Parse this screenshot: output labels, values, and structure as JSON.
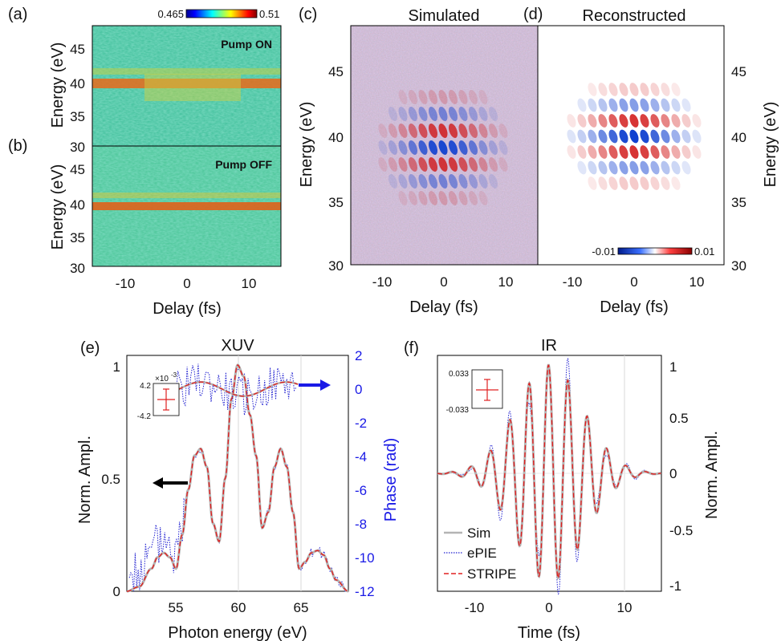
{
  "panels": {
    "a": {
      "tag": "(a)",
      "label": "Pump ON",
      "ylabel": "Energy (eV)",
      "yticks": [
        "45",
        "40",
        "35",
        "30"
      ],
      "cb_min": "0.465",
      "cb_max": "0.51"
    },
    "b": {
      "tag": "(b)",
      "label": "Pump OFF",
      "ylabel": "Energy (eV)",
      "yticks": [
        "45",
        "40",
        "35",
        "30"
      ],
      "xlabel": "Delay (fs)",
      "xticks": [
        "-10",
        "0",
        "10"
      ]
    },
    "c": {
      "tag": "(c)",
      "title": "Simulated",
      "ylabel": "Energy (eV)",
      "yticks": [
        "45",
        "40",
        "35",
        "30"
      ],
      "xlabel": "Delay (fs)",
      "xticks": [
        "-10",
        "0",
        "10"
      ]
    },
    "d": {
      "tag": "(d)",
      "title": "Reconstructed",
      "ylabel": "Energy (eV)",
      "yticks": [
        "45",
        "40",
        "35",
        "30"
      ],
      "xlabel": "Delay (fs)",
      "xticks": [
        "-10",
        "0",
        "10"
      ],
      "cb_min": "-0.01",
      "cb_max": "0.01"
    },
    "e": {
      "tag": "(e)",
      "title": "XUV",
      "ylabel_left": "Norm. Ampl.",
      "ylabel_right": "Phase (rad)",
      "yticks_left": [
        "1",
        "0.5",
        "0"
      ],
      "yticks_right": [
        "2",
        "0",
        "-2",
        "-4",
        "-6",
        "-8",
        "-10",
        "-12"
      ],
      "xlabel": "Photon energy (eV)",
      "xticks": [
        "55",
        "60",
        "65"
      ],
      "inset_top": "4.2",
      "inset_bottom": "-4.2",
      "inset_exp": "×10",
      "inset_exp_pow": "-3"
    },
    "f": {
      "tag": "(f)",
      "title": "IR",
      "ylabel": "Norm. Ampl.",
      "yticks": [
        "1",
        "0.5",
        "0",
        "-0.5",
        "-1"
      ],
      "xlabel": "Time (fs)",
      "xticks": [
        "-10",
        "0",
        "10"
      ],
      "inset_top": "0.033",
      "inset_bottom": "-0.033",
      "legend": [
        "Sim",
        "ePIE",
        "STRIPE"
      ]
    }
  },
  "colors": {
    "sim": "#b4b4b4",
    "epie": "#2020d0",
    "stripe": "#e02020",
    "phase_axis": "#1a1ae6"
  },
  "chart_data": [
    {
      "type": "line",
      "panel": "e",
      "title": "XUV",
      "xlabel": "Photon energy (eV)",
      "ylabel": "Norm. Ampl.",
      "xlim": [
        51,
        69
      ],
      "ylim": [
        0,
        1
      ],
      "series": [
        {
          "name": "Sim",
          "x": [
            51,
            52,
            53,
            53.5,
            54,
            54.5,
            55,
            55.5,
            56,
            56.5,
            57,
            57.5,
            58,
            58.5,
            59,
            59.5,
            60,
            60.5,
            61,
            61.5,
            62,
            62.5,
            63,
            63.5,
            64,
            64.5,
            65,
            65.5,
            66,
            66.5,
            67,
            67.5,
            68,
            69
          ],
          "values": [
            0,
            0.02,
            0.1,
            0.15,
            0.17,
            0.15,
            0.1,
            0.25,
            0.45,
            0.6,
            0.63,
            0.55,
            0.3,
            0.22,
            0.5,
            0.85,
            1.0,
            0.95,
            0.78,
            0.6,
            0.28,
            0.35,
            0.55,
            0.63,
            0.55,
            0.35,
            0.1,
            0.13,
            0.17,
            0.18,
            0.16,
            0.1,
            0.05,
            0
          ]
        }
      ]
    },
    {
      "type": "line",
      "panel": "f",
      "title": "IR",
      "xlabel": "Time (fs)",
      "ylabel": "Norm. Ampl.",
      "xlim": [
        -15,
        15
      ],
      "ylim": [
        -1,
        1
      ],
      "series": [
        {
          "name": "Sim",
          "x": [
            -15,
            15
          ],
          "values": [
            0,
            0
          ]
        }
      ]
    }
  ]
}
